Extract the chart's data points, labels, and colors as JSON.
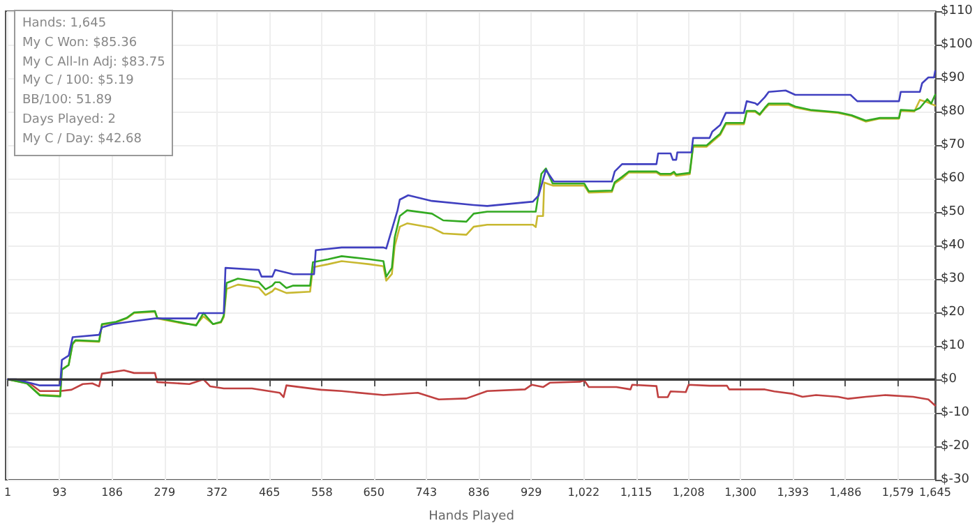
{
  "chart_data": {
    "type": "line",
    "xlabel": "Hands Played",
    "annotations": [
      "Hands: 1,645",
      "My C Won: $85.36",
      "My C All-In Adj: $83.75",
      "My C / 100: $5.19",
      "BB/100: 51.89",
      "Days Played: 2",
      "My C / Day: $42.68"
    ],
    "xlim": [
      1,
      1645
    ],
    "xticks": [
      1,
      93,
      186,
      279,
      372,
      465,
      558,
      650,
      743,
      836,
      929,
      {
        "value": 1022,
        "label": "1,022"
      },
      {
        "value": 1115,
        "label": "1,115"
      },
      {
        "value": 1208,
        "label": "1,208"
      },
      {
        "value": 1300,
        "label": "1,300"
      },
      {
        "value": 1393,
        "label": "1,393"
      },
      {
        "value": 1486,
        "label": "1,486"
      },
      {
        "value": 1579,
        "label": "1,579"
      },
      {
        "value": 1645,
        "label": "1,645"
      }
    ],
    "ylim": [
      -30,
      110
    ],
    "yticks": [
      {
        "value": -30,
        "label": "$-30"
      },
      {
        "value": -20,
        "label": "$-20"
      },
      {
        "value": -10,
        "label": "$-10"
      },
      {
        "value": 0,
        "label": "$0"
      },
      {
        "value": 10,
        "label": "$10"
      },
      {
        "value": 20,
        "label": "$20"
      },
      {
        "value": 30,
        "label": "$30"
      },
      {
        "value": 40,
        "label": "$40"
      },
      {
        "value": 50,
        "label": "$50"
      },
      {
        "value": 60,
        "label": "$60"
      },
      {
        "value": 70,
        "label": "$70"
      },
      {
        "value": 80,
        "label": "$80"
      },
      {
        "value": 90,
        "label": "$90"
      },
      {
        "value": 100,
        "label": "$100"
      },
      {
        "value": 110,
        "label": "$110"
      }
    ],
    "grid": true,
    "marker": "none",
    "line_style": "solid",
    "ref_lines": [
      {
        "axis": "y",
        "value": 0,
        "color": "#333333"
      }
    ],
    "series": [
      {
        "color": "#c04040",
        "x": [
          1,
          40,
          58,
          94,
          114,
          134,
          151,
          163,
          168,
          207,
          225,
          262,
          266,
          323,
          348,
          360,
          384,
          434,
          483,
          490,
          495,
          556,
          593,
          667,
          728,
          765,
          814,
          851,
          918,
          930,
          950,
          962,
          1016,
          1023,
          1031,
          1080,
          1105,
          1108,
          1151,
          1154,
          1171,
          1176,
          1203,
          1208,
          1245,
          1276,
          1280,
          1343,
          1360,
          1392,
          1410,
          1434,
          1473,
          1490,
          1522,
          1557,
          1606,
          1633,
          1645
        ],
        "values": [
          0,
          -1.2,
          -3.5,
          -3.5,
          -3.1,
          -1.4,
          -1.2,
          -2.1,
          1.7,
          2.7,
          1.9,
          1.9,
          -0.8,
          -1.4,
          0,
          -2.1,
          -2.7,
          -2.7,
          -4.0,
          -5.3,
          -1.8,
          -3.1,
          -3.5,
          -4.7,
          -4.0,
          -6.0,
          -5.7,
          -3.5,
          -3.0,
          -1.6,
          -2.3,
          -1.0,
          -0.7,
          -0.3,
          -2.3,
          -2.3,
          -3.0,
          -1.6,
          -2.0,
          -5.3,
          -5.3,
          -3.6,
          -3.8,
          -1.6,
          -1.9,
          -1.9,
          -3.0,
          -3.0,
          -3.6,
          -4.3,
          -5.2,
          -4.7,
          -5.2,
          -5.8,
          -5.2,
          -4.7,
          -5.2,
          -6.0,
          -7.8
        ]
      },
      {
        "color": "#c8b830",
        "x": [
          1,
          35,
          58,
          94,
          97,
          109,
          116,
          121,
          163,
          168,
          193,
          212,
          225,
          262,
          266,
          311,
          335,
          348,
          365,
          379,
          384,
          389,
          409,
          446,
          458,
          470,
          475,
          495,
          537,
          542,
          569,
          593,
          642,
          667,
          672,
          682,
          687,
          696,
          709,
          753,
          773,
          814,
          827,
          851,
          932,
          937,
          940,
          950,
          952,
          967,
          1023,
          1031,
          1072,
          1077,
          1090,
          1102,
          1151,
          1158,
          1176,
          1182,
          1186,
          1210,
          1216,
          1240,
          1250,
          1264,
          1274,
          1306,
          1311,
          1326,
          1334,
          1343,
          1350,
          1385,
          1397,
          1424,
          1473,
          1497,
          1522,
          1547,
          1581,
          1584,
          1608,
          1618,
          1631,
          1645
        ],
        "values": [
          0,
          -1.2,
          -4.6,
          -4.9,
          3.0,
          4.3,
          10.5,
          11.5,
          11.2,
          16.3,
          17.0,
          18.2,
          19.8,
          20.2,
          18.2,
          16.7,
          16.3,
          18.8,
          16.5,
          17.0,
          18.6,
          27.0,
          28.3,
          27.4,
          25.2,
          26.3,
          27.2,
          25.8,
          26.2,
          33.5,
          34.4,
          35.3,
          34.4,
          33.8,
          29.5,
          31.5,
          39.8,
          45.6,
          46.6,
          45.3,
          43.6,
          43.2,
          45.6,
          46.2,
          46.2,
          45.5,
          48.8,
          48.8,
          58.8,
          57.9,
          57.9,
          55.8,
          56.0,
          58.5,
          60.0,
          61.8,
          61.8,
          61.0,
          61.0,
          61.6,
          60.8,
          61.3,
          69.5,
          69.5,
          71.0,
          73.0,
          76.2,
          76.2,
          80.0,
          79.9,
          79.0,
          80.8,
          82.0,
          82.0,
          81.2,
          80.3,
          79.6,
          78.7,
          77.0,
          77.9,
          77.9,
          80.2,
          80.0,
          83.5,
          82.8,
          81.8
        ]
      },
      {
        "color": "#33aa22",
        "x": [
          1,
          35,
          58,
          94,
          97,
          109,
          116,
          121,
          163,
          168,
          193,
          212,
          225,
          262,
          266,
          311,
          335,
          348,
          365,
          379,
          384,
          389,
          409,
          446,
          458,
          470,
          475,
          483,
          495,
          507,
          537,
          542,
          569,
          593,
          642,
          667,
          672,
          682,
          687,
          696,
          709,
          753,
          773,
          814,
          827,
          851,
          937,
          940,
          947,
          955,
          967,
          1023,
          1031,
          1072,
          1077,
          1090,
          1102,
          1151,
          1158,
          1176,
          1182,
          1186,
          1210,
          1216,
          1240,
          1250,
          1264,
          1274,
          1306,
          1311,
          1326,
          1334,
          1343,
          1350,
          1385,
          1397,
          1424,
          1473,
          1497,
          1522,
          1547,
          1581,
          1584,
          1608,
          1618,
          1631,
          1638,
          1645
        ],
        "values": [
          0,
          -1.2,
          -4.8,
          -5.1,
          2.9,
          4.3,
          10.7,
          11.7,
          11.4,
          16.5,
          17.2,
          18.4,
          20.0,
          20.4,
          18.4,
          16.9,
          16.1,
          19.8,
          16.5,
          17.2,
          19.1,
          28.8,
          30.1,
          29.1,
          26.9,
          28.0,
          29.0,
          29.0,
          27.3,
          28.0,
          28.0,
          35.0,
          35.9,
          36.8,
          35.9,
          35.3,
          30.7,
          33.3,
          42.4,
          48.8,
          50.5,
          49.5,
          47.5,
          47.1,
          49.5,
          50.1,
          50.1,
          53.3,
          61.4,
          63.0,
          58.5,
          58.5,
          56.2,
          56.4,
          58.9,
          60.5,
          62.1,
          62.1,
          61.4,
          61.4,
          62.0,
          61.2,
          61.7,
          69.9,
          69.9,
          71.4,
          73.4,
          76.6,
          76.6,
          80.2,
          80.2,
          79.2,
          81.1,
          82.4,
          82.4,
          81.5,
          80.5,
          79.8,
          78.9,
          77.3,
          78.1,
          78.1,
          80.5,
          80.3,
          81.1,
          83.7,
          82.4,
          85.0
        ]
      },
      {
        "color": "#4040c0",
        "x": [
          1,
          16,
          58,
          94,
          97,
          109,
          116,
          163,
          168,
          188,
          225,
          262,
          335,
          340,
          384,
          387,
          446,
          451,
          470,
          475,
          507,
          544,
          547,
          593,
          667,
          672,
          692,
          696,
          711,
          753,
          827,
          851,
          932,
          942,
          955,
          969,
          1072,
          1077,
          1090,
          1151,
          1154,
          1176,
          1180,
          1186,
          1188,
          1213,
          1216,
          1245,
          1250,
          1264,
          1274,
          1306,
          1311,
          1326,
          1330,
          1343,
          1350,
          1380,
          1397,
          1495,
          1507,
          1581,
          1584,
          1618,
          1622,
          1633,
          1643,
          1645
        ],
        "values": [
          0,
          0,
          -1.8,
          -1.8,
          5.8,
          7.1,
          12.6,
          13.3,
          15.5,
          16.5,
          17.4,
          18.2,
          18.2,
          19.8,
          19.8,
          33.3,
          32.7,
          30.7,
          30.7,
          32.7,
          31.4,
          31.4,
          38.6,
          39.4,
          39.4,
          39.1,
          50.5,
          53.7,
          55.0,
          53.3,
          52.1,
          51.8,
          53.1,
          54.9,
          62.6,
          59.1,
          59.1,
          62.1,
          64.3,
          64.3,
          67.5,
          67.5,
          65.6,
          65.6,
          67.8,
          67.8,
          72.1,
          72.1,
          74.0,
          76.0,
          79.6,
          79.6,
          83.1,
          82.5,
          82.0,
          84.3,
          85.9,
          86.3,
          85.0,
          85.0,
          83.1,
          83.1,
          85.9,
          85.9,
          88.5,
          90.2,
          90.2,
          92.1
        ]
      }
    ]
  }
}
